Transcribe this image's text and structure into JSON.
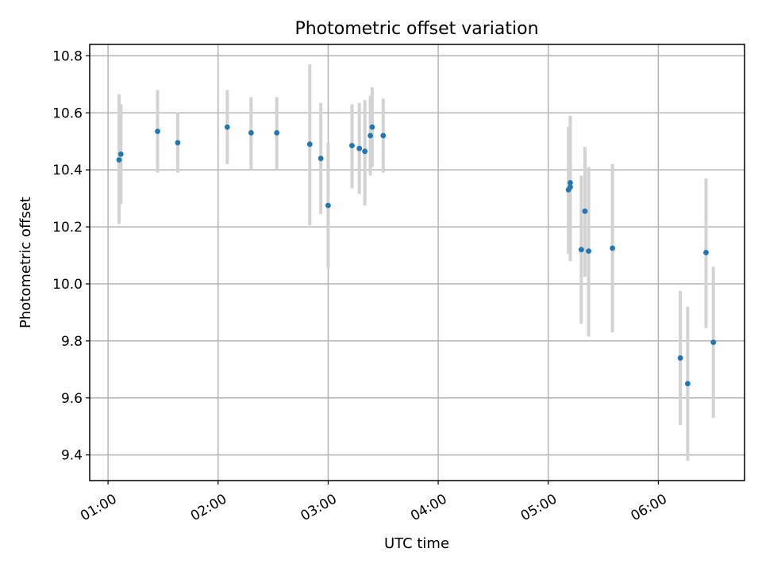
{
  "chart_data": {
    "type": "scatter",
    "title": "Photometric offset variation",
    "xlabel": "UTC time",
    "ylabel": "Photometric offset",
    "x_ticks": [
      "01:00",
      "02:00",
      "03:00",
      "04:00",
      "05:00",
      "06:00"
    ],
    "y_ticks": [
      "9.4",
      "9.6",
      "9.8",
      "10.0",
      "10.2",
      "10.4",
      "10.6",
      "10.8"
    ],
    "xlim": [
      "00:50",
      "06:47"
    ],
    "ylim": [
      9.31,
      10.84
    ],
    "grid": true,
    "marker_color": "#1f77b4",
    "errorbar_color": "#d3d3d3",
    "series": [
      {
        "points": [
          {
            "x": "01:06",
            "y": 10.435,
            "lo": 10.21,
            "hi": 10.665
          },
          {
            "x": "01:07",
            "y": 10.455,
            "lo": 10.28,
            "hi": 10.63
          },
          {
            "x": "01:27",
            "y": 10.535,
            "lo": 10.39,
            "hi": 10.68
          },
          {
            "x": "01:38",
            "y": 10.495,
            "lo": 10.39,
            "hi": 10.6
          },
          {
            "x": "02:05",
            "y": 10.55,
            "lo": 10.42,
            "hi": 10.68
          },
          {
            "x": "02:18",
            "y": 10.53,
            "lo": 10.4,
            "hi": 10.655
          },
          {
            "x": "02:32",
            "y": 10.53,
            "lo": 10.4,
            "hi": 10.655
          },
          {
            "x": "02:50",
            "y": 10.49,
            "lo": 10.205,
            "hi": 10.77
          },
          {
            "x": "02:56",
            "y": 10.44,
            "lo": 10.245,
            "hi": 10.635
          },
          {
            "x": "03:00",
            "y": 10.275,
            "lo": 10.055,
            "hi": 10.495
          },
          {
            "x": "03:13",
            "y": 10.485,
            "lo": 10.335,
            "hi": 10.63
          },
          {
            "x": "03:17",
            "y": 10.475,
            "lo": 10.315,
            "hi": 10.635
          },
          {
            "x": "03:20",
            "y": 10.465,
            "lo": 10.275,
            "hi": 10.645
          },
          {
            "x": "03:23",
            "y": 10.52,
            "lo": 10.38,
            "hi": 10.66
          },
          {
            "x": "03:24",
            "y": 10.55,
            "lo": 10.41,
            "hi": 10.69
          },
          {
            "x": "03:30",
            "y": 10.52,
            "lo": 10.39,
            "hi": 10.65
          },
          {
            "x": "05:11",
            "y": 10.33,
            "lo": 10.105,
            "hi": 10.55
          },
          {
            "x": "05:12",
            "y": 10.34,
            "lo": 10.08,
            "hi": 10.59
          },
          {
            "x": "05:12",
            "y": 10.355,
            "lo": 10.13,
            "hi": 10.58
          },
          {
            "x": "05:18",
            "y": 10.12,
            "lo": 9.86,
            "hi": 10.38
          },
          {
            "x": "05:20",
            "y": 10.255,
            "lo": 10.025,
            "hi": 10.48
          },
          {
            "x": "05:22",
            "y": 10.115,
            "lo": 9.815,
            "hi": 10.41
          },
          {
            "x": "05:35",
            "y": 10.125,
            "lo": 9.83,
            "hi": 10.42
          },
          {
            "x": "06:12",
            "y": 9.74,
            "lo": 9.505,
            "hi": 9.975
          },
          {
            "x": "06:16",
            "y": 9.65,
            "lo": 9.38,
            "hi": 9.92
          },
          {
            "x": "06:26",
            "y": 10.11,
            "lo": 9.845,
            "hi": 10.37
          },
          {
            "x": "06:30",
            "y": 9.795,
            "lo": 9.53,
            "hi": 10.06
          }
        ]
      }
    ]
  }
}
